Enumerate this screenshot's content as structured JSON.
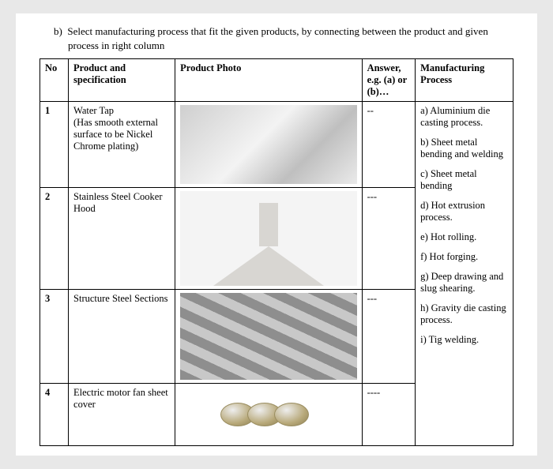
{
  "question": {
    "label": "b)",
    "text": "Select manufacturing process that fit the given products, by connecting between the product and given process in right column"
  },
  "headers": {
    "no": "No",
    "product": "Product and specification",
    "photo": "Product Photo",
    "answer": "Answer, e.g. (a) or (b)…",
    "process": "Manufacturing Process"
  },
  "rows": [
    {
      "no": "1",
      "product": "Water Tap\n(Has smooth external surface to be Nickel Chrome plating)",
      "answer": "--",
      "photo": "taps"
    },
    {
      "no": "2",
      "product": "Stainless Steel Cooker Hood",
      "answer": "---",
      "photo": "hood"
    },
    {
      "no": "3",
      "product": "Structure Steel Sections",
      "answer": "---",
      "photo": "steel"
    },
    {
      "no": "4",
      "product": "Electric motor fan sheet cover",
      "answer": "----",
      "photo": "discs"
    }
  ],
  "processes": [
    "a) Aluminium die casting process.",
    "b) Sheet metal bending and welding",
    "c) Sheet metal bending",
    "d) Hot extrusion process.",
    "e) Hot rolling.",
    "f) Hot forging.",
    "g) Deep drawing and slug shearing.",
    "h) Gravity die casting process.",
    "i) Tig welding."
  ]
}
